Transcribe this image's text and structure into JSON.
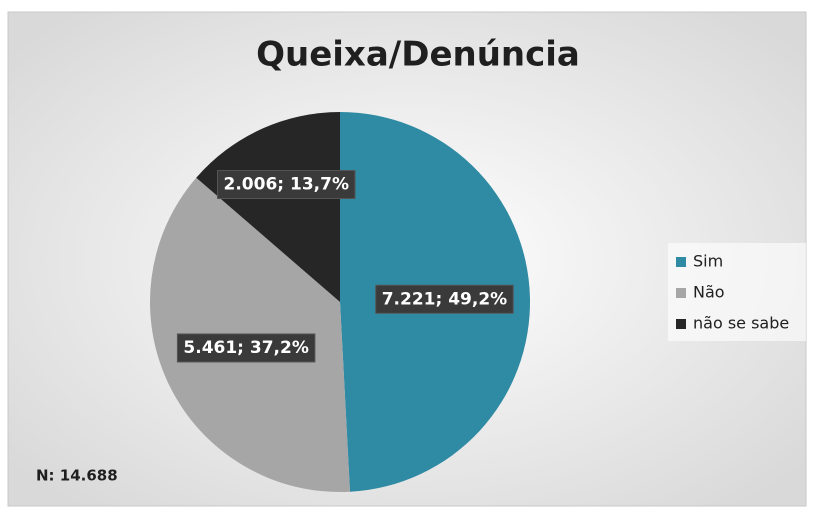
{
  "chart_data": {
    "type": "pie",
    "title": "Queixa/Denúncia",
    "categories": [
      "Sim",
      "Não",
      "não se sabe"
    ],
    "values": [
      7221,
      5461,
      2006
    ],
    "value_labels": [
      "7.221; 49,2%",
      "5.461; 37,2%",
      "2.006; 13,7%"
    ],
    "colors": [
      "#2f8aa3",
      "#a6a6a6",
      "#262626"
    ],
    "legend": "right",
    "annotations": [
      "N: 14.688"
    ]
  }
}
